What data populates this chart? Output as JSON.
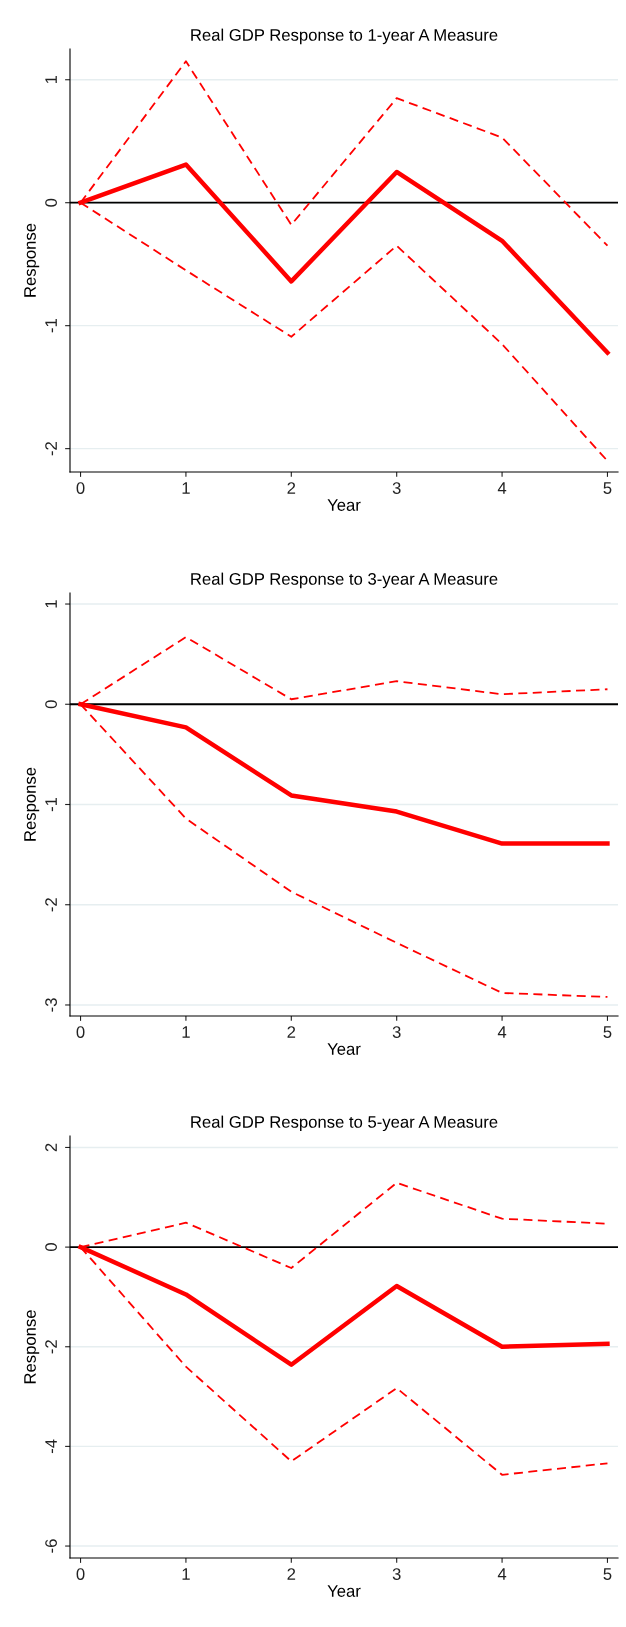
{
  "chart_data": [
    {
      "type": "line",
      "title": "Real GDP Response to 1-year A Measure",
      "xlabel": "Year",
      "ylabel": "Response",
      "x": [
        0,
        1,
        2,
        3,
        4,
        5
      ],
      "xlim": [
        -0.1,
        5.1
      ],
      "xticks": [
        0,
        1,
        2,
        3,
        4,
        5
      ],
      "ylim": [
        -2.19,
        1.25
      ],
      "yticks": [
        -2,
        -1,
        0,
        1
      ],
      "grid": "y",
      "ref_lines": [
        {
          "axis": "y",
          "value": 0,
          "color": "#000000"
        }
      ],
      "series": [
        {
          "color": "#ff0000",
          "line_style": "solid",
          "values": [
            0,
            0.31,
            -0.64,
            0.25,
            -0.31,
            -1.22
          ]
        },
        {
          "color": "#ff0000",
          "line_style": "dashed",
          "values": [
            0,
            1.15,
            -0.18,
            0.85,
            0.53,
            -0.35
          ]
        },
        {
          "color": "#ff0000",
          "line_style": "dashed",
          "values": [
            0,
            -0.55,
            -1.09,
            -0.35,
            -1.15,
            -2.1
          ]
        }
      ]
    },
    {
      "type": "line",
      "title": "Real GDP Response to 3-year A Measure",
      "xlabel": "Year",
      "ylabel": "Response",
      "x": [
        0,
        1,
        2,
        3,
        4,
        5
      ],
      "xlim": [
        -0.1,
        5.1
      ],
      "xticks": [
        0,
        1,
        2,
        3,
        4,
        5
      ],
      "ylim": [
        -3.11,
        1.11
      ],
      "yticks": [
        -3,
        -2,
        -1,
        0,
        1
      ],
      "grid": "y",
      "ref_lines": [
        {
          "axis": "y",
          "value": 0,
          "color": "#000000"
        }
      ],
      "series": [
        {
          "color": "#ff0000",
          "line_style": "solid",
          "values": [
            0,
            -0.23,
            -0.91,
            -1.07,
            -1.39,
            -1.39
          ]
        },
        {
          "color": "#ff0000",
          "line_style": "dashed",
          "values": [
            0,
            0.67,
            0.05,
            0.23,
            0.1,
            0.15
          ]
        },
        {
          "color": "#ff0000",
          "line_style": "dashed",
          "values": [
            0,
            -1.14,
            -1.87,
            -2.38,
            -2.88,
            -2.92
          ]
        }
      ]
    },
    {
      "type": "line",
      "title": "Real GDP Response to 5-year A Measure",
      "xlabel": "Year",
      "ylabel": "Response",
      "x": [
        0,
        1,
        2,
        3,
        4,
        5
      ],
      "xlim": [
        -0.1,
        5.1
      ],
      "xticks": [
        0,
        1,
        2,
        3,
        4,
        5
      ],
      "ylim": [
        -6.24,
        2.23
      ],
      "yticks": [
        -6,
        -4,
        -2,
        0,
        2
      ],
      "grid": "y",
      "ref_lines": [
        {
          "axis": "y",
          "value": 0,
          "color": "#000000"
        }
      ],
      "series": [
        {
          "color": "#ff0000",
          "line_style": "solid",
          "values": [
            0,
            -0.95,
            -2.36,
            -0.78,
            -2.0,
            -1.94
          ]
        },
        {
          "color": "#ff0000",
          "line_style": "dashed",
          "values": [
            0,
            0.49,
            -0.42,
            1.29,
            0.57,
            0.47
          ]
        },
        {
          "color": "#ff0000",
          "line_style": "dashed",
          "values": [
            0,
            -2.4,
            -4.3,
            -2.83,
            -4.57,
            -4.34
          ]
        }
      ]
    }
  ]
}
